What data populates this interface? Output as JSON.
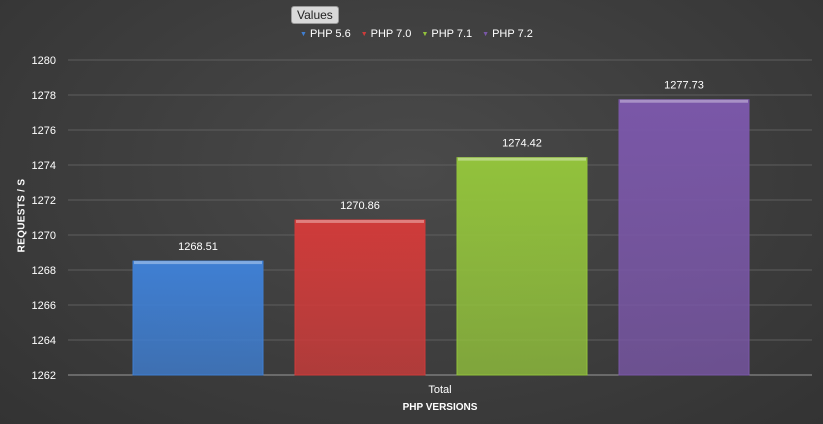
{
  "legend_chip": "Values",
  "colors": {
    "PHP 5.6": "#3f7fd3",
    "PHP 7.0": "#cf3b3a",
    "PHP 7.1": "#92c23c",
    "PHP 7.2": "#7a57a8"
  },
  "chart_data": {
    "type": "bar",
    "categories": [
      "Total"
    ],
    "series": [
      {
        "name": "PHP 5.6",
        "values": [
          1268.51
        ]
      },
      {
        "name": "PHP 7.0",
        "values": [
          1270.86
        ]
      },
      {
        "name": "PHP 7.1",
        "values": [
          1274.42
        ]
      },
      {
        "name": "PHP 7.2",
        "values": [
          1277.73
        ]
      }
    ],
    "data_labels": [
      "1268.51",
      "1270.86",
      "1274.42",
      "1277.73"
    ],
    "yticks": [
      "1262",
      "1264",
      "1266",
      "1268",
      "1270",
      "1272",
      "1274",
      "1276",
      "1278",
      "1280"
    ],
    "xlabel": "PHP VERSIONS",
    "ylabel": "REQUESTS / S",
    "ylim": [
      1262,
      1280
    ],
    "grid": true,
    "legend_position": "top"
  }
}
